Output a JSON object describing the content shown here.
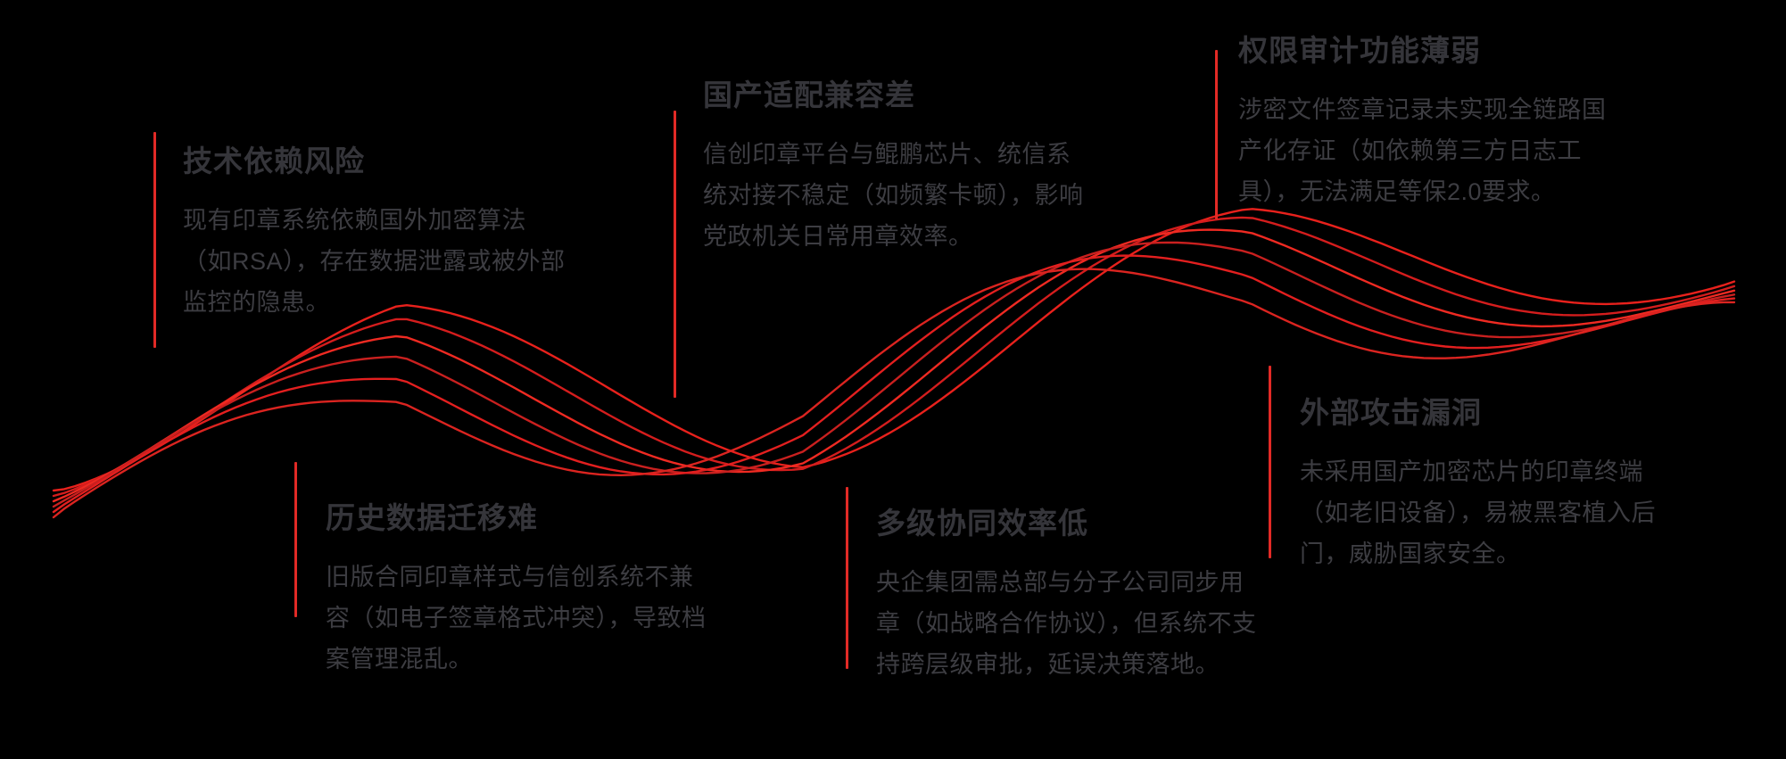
{
  "canvas": {
    "background": "#000000"
  },
  "decor": {
    "wave": {
      "type": "braided-sine-ribbon",
      "line_count": 6,
      "stroke_width": 2.4,
      "colors": [
        "#e8211c",
        "#d41d1d",
        "#ef2a22",
        "#c9201f",
        "#e31f1f",
        "#db2420"
      ]
    },
    "connector_color": "#e22a26",
    "title_color": "#35353a",
    "body_color": "#3d3d42"
  },
  "items": [
    {
      "id": "tech-dependency-risk",
      "title": "技术依赖风险",
      "body": "现有印章系统依赖国外加密算法（如RSA），存在数据泄露或被外部监控的隐患。"
    },
    {
      "id": "domestic-compat-poor",
      "title": "国产适配兼容差",
      "body": "信创印章平台与鲲鹏芯片、统信系统对接不稳定（如频繁卡顿），影响党政机关日常用章效率。"
    },
    {
      "id": "audit-function-weak",
      "title": "权限审计功能薄弱",
      "body": "涉密文件签章记录未实现全链路国产化存证（如依赖第三方日志工具），无法满足等保2.0要求。"
    },
    {
      "id": "history-data-migration",
      "title": "历史数据迁移难",
      "body": "旧版合同印章样式与信创系统不兼容（如电子签章格式冲突），导致档案管理混乱。"
    },
    {
      "id": "multilevel-collab-low",
      "title": "多级协同效率低",
      "body": "央企集团需总部与分子公司同步用章（如战略合作协议），但系统不支持跨层级审批，延误决策落地。"
    },
    {
      "id": "external-attack-vuln",
      "title": "外部攻击漏洞",
      "body": "未采用国产加密芯片的印章终端（如老旧设备），易被黑客植入后门，威胁国家安全。"
    }
  ]
}
